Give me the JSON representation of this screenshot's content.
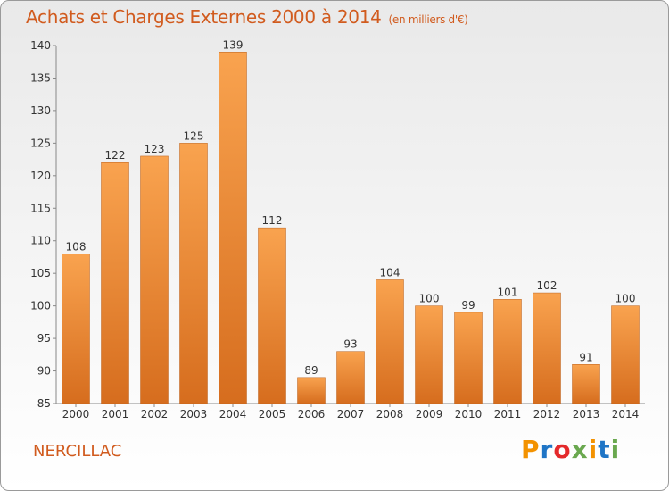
{
  "header": {
    "title": "Achats et Charges Externes 2000 à 2014",
    "unit": "(en milliers d'€)"
  },
  "footer": {
    "town": "NERCILLAC",
    "logo": "Proxiti"
  },
  "colors": {
    "title": "#d15b1e",
    "bar_top": "#f9a34f",
    "bar_bottom": "#d66d1e",
    "logo_letters": [
      "#f39200",
      "#1f75c6",
      "#e4292b",
      "#6aa84f",
      "#f39200",
      "#1f75c6",
      "#6aa84f"
    ]
  },
  "chart_data": {
    "type": "bar",
    "title": "Achats et Charges Externes 2000 à 2014",
    "subtitle": "(en milliers d'€)",
    "categories": [
      "2000",
      "2001",
      "2002",
      "2003",
      "2004",
      "2005",
      "2006",
      "2007",
      "2008",
      "2009",
      "2010",
      "2011",
      "2012",
      "2013",
      "2014"
    ],
    "values": [
      108,
      122,
      123,
      125,
      139,
      112,
      89,
      93,
      104,
      100,
      99,
      101,
      102,
      91,
      100
    ],
    "ylim": [
      85,
      140
    ],
    "yticks": [
      85,
      90,
      95,
      100,
      105,
      110,
      115,
      120,
      125,
      130,
      135,
      140
    ],
    "grid": false,
    "data_labels": true
  }
}
